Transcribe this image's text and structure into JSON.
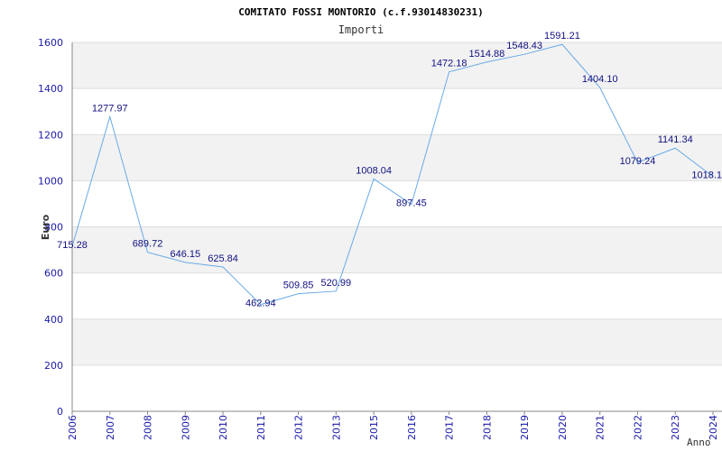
{
  "chart_data": {
    "type": "line",
    "title": "COMITATO FOSSI MONTORIO (c.f.93014830231)",
    "subtitle": "Importi",
    "xlabel": "Anno",
    "ylabel": "Euro",
    "ylim": [
      0,
      1600
    ],
    "yticks": [
      0,
      200,
      400,
      600,
      800,
      1000,
      1200,
      1400,
      1600
    ],
    "ytick_labels": [
      "0",
      "200",
      "400",
      "600",
      "800",
      "1000",
      "1200",
      "1400",
      "1600"
    ],
    "grid": true,
    "colors": {
      "line": "#6aaae6",
      "band": "#f2f2f2",
      "grid": "#dddddd",
      "tick_text": "#1a1aa8",
      "label_text": "#101080"
    },
    "categories": [
      "2006",
      "2007",
      "2008",
      "2009",
      "2010",
      "2011",
      "2012",
      "2013",
      "2015",
      "2016",
      "2017",
      "2018",
      "2019",
      "2020",
      "2021",
      "2022",
      "2023",
      "2024"
    ],
    "series": [
      {
        "name": "Importi",
        "values": [
          715.28,
          1277.97,
          689.72,
          646.15,
          625.84,
          462.94,
          509.85,
          520.99,
          1008.04,
          897.45,
          1472.18,
          1514.88,
          1548.43,
          1591.21,
          1404.1,
          1079.24,
          1141.34,
          1018.1
        ],
        "labels": [
          "715.28",
          "1277.97",
          "689.72",
          "646.15",
          "625.84",
          "462.94",
          "509.85",
          "520.99",
          "1008.04",
          "897.45",
          "1472.18",
          "1514.88",
          "1548.43",
          "1591.21",
          "1404.10",
          "1079.24",
          "1141.34",
          "1018.1"
        ]
      }
    ]
  }
}
